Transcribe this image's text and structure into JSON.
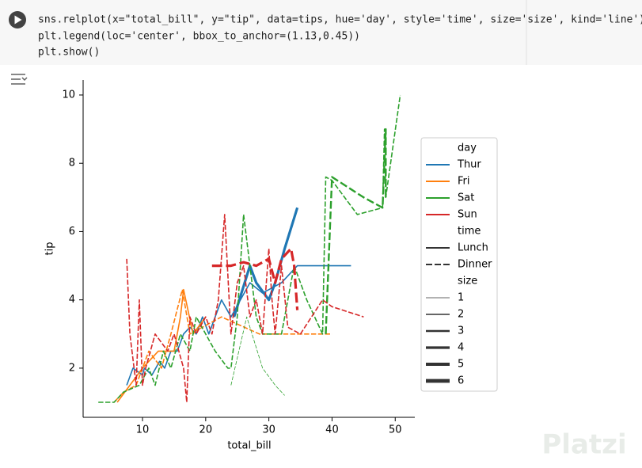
{
  "code": [
    "sns.relplot(x=\"total_bill\", y=\"tip\", data=tips, hue='day', style='time', size='size', kind='line')",
    "plt.legend(loc='center', bbox_to_anchor=(1.13,0.45))",
    "plt.show()"
  ],
  "watermark": "Platzi",
  "chart_data": {
    "type": "line",
    "xlabel": "total_bill",
    "ylabel": "tip",
    "xlim": [
      0.6,
      53.1
    ],
    "ylim": [
      0.56,
      10.44
    ],
    "xticks": [
      10,
      20,
      30,
      40,
      50
    ],
    "yticks": [
      2,
      4,
      6,
      8,
      10
    ],
    "legend": {
      "loc": "center right",
      "hue": {
        "title": "day",
        "entries": [
          {
            "name": "Thur",
            "color": "#1f77b4"
          },
          {
            "name": "Fri",
            "color": "#ff7f0e"
          },
          {
            "name": "Sat",
            "color": "#2ca02c"
          },
          {
            "name": "Sun",
            "color": "#d62728"
          }
        ]
      },
      "style": {
        "title": "time",
        "entries": [
          {
            "name": "Lunch",
            "dashed": false
          },
          {
            "name": "Dinner",
            "dashed": true
          }
        ]
      },
      "size": {
        "title": "size",
        "entries": [
          {
            "name": "1",
            "width": 0.8
          },
          {
            "name": "2",
            "width": 1.6
          },
          {
            "name": "3",
            "width": 2.4
          },
          {
            "name": "4",
            "width": 3.2
          },
          {
            "name": "5",
            "width": 4
          },
          {
            "name": "6",
            "width": 4.8
          }
        ]
      }
    },
    "series": [
      {
        "name": "Thur",
        "time": "Lunch",
        "size": "2",
        "x": [
          7.5,
          8.5,
          10,
          10.3,
          11.5,
          12.7,
          13.5,
          14.5,
          15.5,
          16.5,
          17.5,
          18.5,
          19.5,
          20.5,
          21.5,
          22.5,
          24,
          25.5,
          27,
          29,
          32,
          34.5,
          43
        ],
        "values": [
          1.5,
          2,
          1.8,
          2,
          1.8,
          2.2,
          2,
          2.5,
          2.5,
          3,
          3.2,
          3,
          3.5,
          3,
          3.5,
          4,
          3.5,
          4,
          4.5,
          4.2,
          4.5,
          5,
          5
        ]
      },
      {
        "name": "Thur",
        "time": "Lunch",
        "size": "4",
        "x": [
          24.5,
          27,
          28,
          30,
          31,
          32.5,
          34.5
        ],
        "values": [
          3.5,
          5,
          4.5,
          4,
          4.5,
          5.5,
          6.7
        ]
      },
      {
        "name": "Fri",
        "time": "Lunch",
        "size": "2",
        "x": [
          6,
          8,
          10,
          12.5,
          15,
          16,
          16.5,
          18,
          20
        ],
        "values": [
          1,
          1.5,
          2,
          2.5,
          2.5,
          3.5,
          4.3,
          3,
          3.5
        ]
      },
      {
        "name": "Fri",
        "time": "Dinner",
        "size": "2",
        "x": [
          5.5,
          7,
          9,
          11,
          13,
          14.5,
          16.3,
          17.5,
          22.5,
          28.5,
          40
        ],
        "values": [
          1,
          1.3,
          1.5,
          2.5,
          2,
          3,
          4.3,
          3,
          3.5,
          3,
          3
        ]
      },
      {
        "name": "Sat",
        "time": "Dinner",
        "size": "2",
        "x": [
          3,
          5.5,
          7,
          9.5,
          11,
          12,
          13.3,
          14.5,
          16,
          17.5,
          18.5,
          20,
          21.5,
          23.5,
          24,
          25,
          26,
          27,
          28,
          29,
          30.5,
          32,
          34,
          36,
          38.5,
          39,
          40,
          44,
          48,
          48.3,
          48.5,
          50.8
        ],
        "values": [
          1,
          1,
          1.3,
          1.5,
          2,
          1.5,
          2.5,
          2,
          3,
          2.5,
          3.5,
          3,
          2.5,
          2,
          2,
          3.5,
          6.5,
          5,
          3.5,
          3,
          3,
          3,
          5,
          4,
          3,
          7.6,
          7.5,
          6.5,
          6.7,
          9,
          7,
          10
        ]
      },
      {
        "name": "Sat",
        "time": "Dinner",
        "size": "3",
        "x": [
          39,
          40,
          45,
          48,
          48.5,
          48.5
        ],
        "values": [
          3,
          7.6,
          7,
          6.7,
          9,
          7
        ]
      },
      {
        "name": "Sat",
        "time": "Dinner",
        "size": "1",
        "x": [
          24,
          26.5,
          29,
          31,
          32.5
        ],
        "values": [
          1.5,
          3.5,
          2,
          1.5,
          1.2
        ]
      },
      {
        "name": "Sun",
        "time": "Dinner",
        "size": "2",
        "x": [
          7.5,
          8,
          9,
          9.5,
          10,
          10.5,
          12,
          14,
          15,
          16.5,
          17,
          17.5,
          18.5,
          20,
          21,
          22,
          23,
          24,
          25,
          26,
          27,
          28,
          29,
          30,
          30.5,
          31,
          32,
          33,
          35,
          38.5,
          40,
          45
        ],
        "values": [
          5.2,
          3,
          1.5,
          4,
          1.5,
          2,
          3,
          2.5,
          3,
          2,
          1,
          3.5,
          3,
          3.5,
          3,
          4,
          6.5,
          3,
          4.5,
          5,
          3.5,
          4,
          3,
          5.5,
          4,
          3,
          5,
          3.2,
          3,
          4,
          3.8,
          3.5
        ]
      },
      {
        "name": "Sun",
        "time": "Dinner",
        "size": "4",
        "x": [
          21,
          24,
          26,
          28,
          30,
          31,
          32,
          33.5,
          34,
          34.5
        ],
        "values": [
          5,
          5,
          5.1,
          5,
          5.2,
          4.5,
          5.2,
          5.5,
          5,
          3.7
        ]
      }
    ]
  }
}
